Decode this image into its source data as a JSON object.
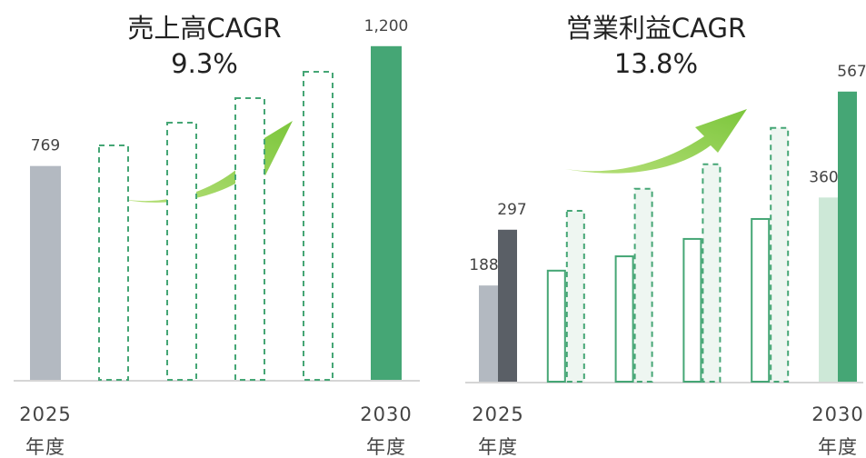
{
  "chart_data": [
    {
      "type": "bar",
      "title": "売上高CAGR",
      "subtitle": "9.3%",
      "categories": [
        "2025",
        null,
        null,
        null,
        null,
        "2030"
      ],
      "x_unit": "年度",
      "ylim": [
        0,
        1366
      ],
      "series": [
        {
          "values": [
            769,
            843,
            925,
            1013,
            1108,
            1200
          ],
          "value_labels": [
            "769",
            null,
            null,
            null,
            null,
            "1,200"
          ],
          "fills": [
            "#b3b9c1",
            "#ffffff",
            "#ffffff",
            "#ffffff",
            "#ffffff",
            "#45a675"
          ],
          "strokes": [
            null,
            "#45a675",
            "#45a675",
            "#45a675",
            "#45a675",
            null
          ],
          "dashed": [
            false,
            true,
            true,
            true,
            true,
            false
          ]
        }
      ]
    },
    {
      "type": "grouped_bar",
      "title": "営業利益CAGR",
      "subtitle": "13.8%",
      "categories": [
        "2025",
        null,
        null,
        null,
        null,
        "2030"
      ],
      "x_unit": "年度",
      "ylim": [
        0,
        746
      ],
      "series": [
        {
          "values": [
            188,
            217,
            245,
            279,
            318,
            360
          ],
          "value_labels": [
            "188",
            null,
            null,
            null,
            null,
            "360"
          ],
          "fills": [
            "#b3b9c1",
            "#ffffff",
            "#ffffff",
            "#ffffff",
            "#ffffff",
            "#cde8d7"
          ],
          "strokes": [
            null,
            "#45a675",
            "#45a675",
            "#45a675",
            "#45a675",
            null
          ],
          "dashed": [
            false,
            false,
            false,
            false,
            false,
            false
          ]
        },
        {
          "values": [
            297,
            334,
            377,
            425,
            496,
            567
          ],
          "value_labels": [
            "297",
            null,
            null,
            null,
            null,
            "567"
          ],
          "fills": [
            "#5a5f66",
            "#eef6f1",
            "#eef6f1",
            "#eef6f1",
            "#eef6f1",
            "#45a675"
          ],
          "strokes": [
            null,
            "#45a675",
            "#45a675",
            "#45a675",
            "#45a675",
            null
          ],
          "dashed": [
            false,
            true,
            true,
            true,
            true,
            false
          ]
        }
      ]
    }
  ]
}
